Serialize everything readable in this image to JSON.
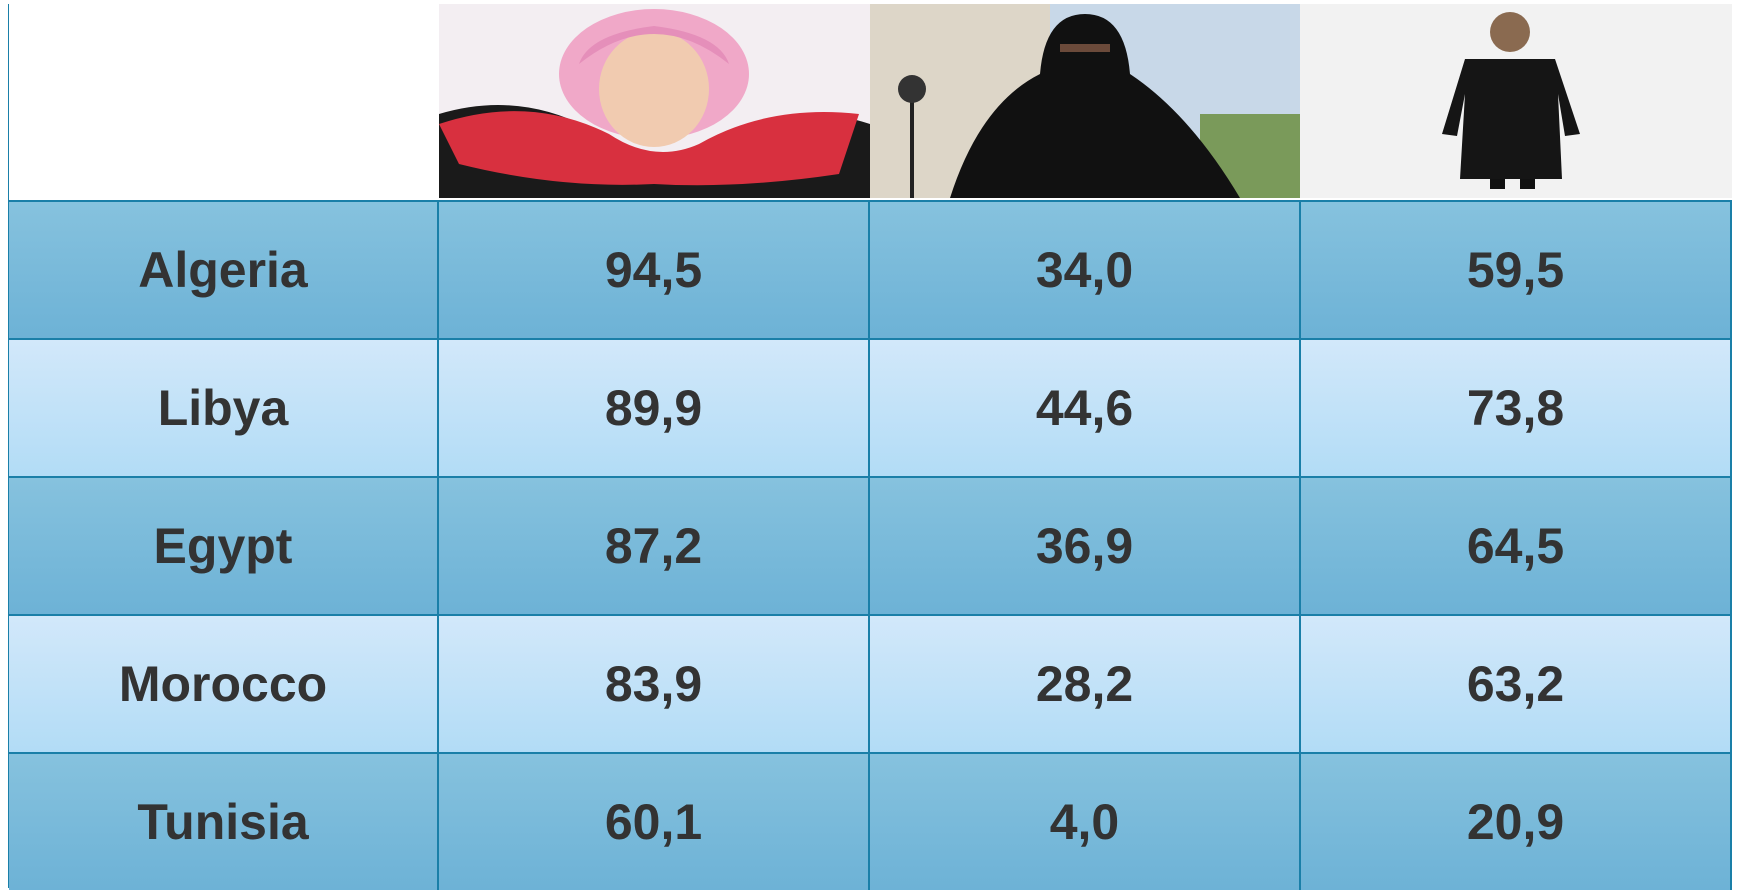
{
  "table": {
    "rows": [
      {
        "label": "Algeria",
        "cells": [
          "94,5",
          "34,0",
          "59,5"
        ]
      },
      {
        "label": "Libya",
        "cells": [
          "89,9",
          "44,6",
          "73,8"
        ]
      },
      {
        "label": "Egypt",
        "cells": [
          "87,2",
          "36,9",
          "64,5"
        ]
      },
      {
        "label": "Morocco",
        "cells": [
          "83,9",
          "28,2",
          "63,2"
        ]
      },
      {
        "label": "Tunisia",
        "cells": [
          "60,1",
          "4,0",
          "20,9"
        ]
      }
    ]
  }
}
